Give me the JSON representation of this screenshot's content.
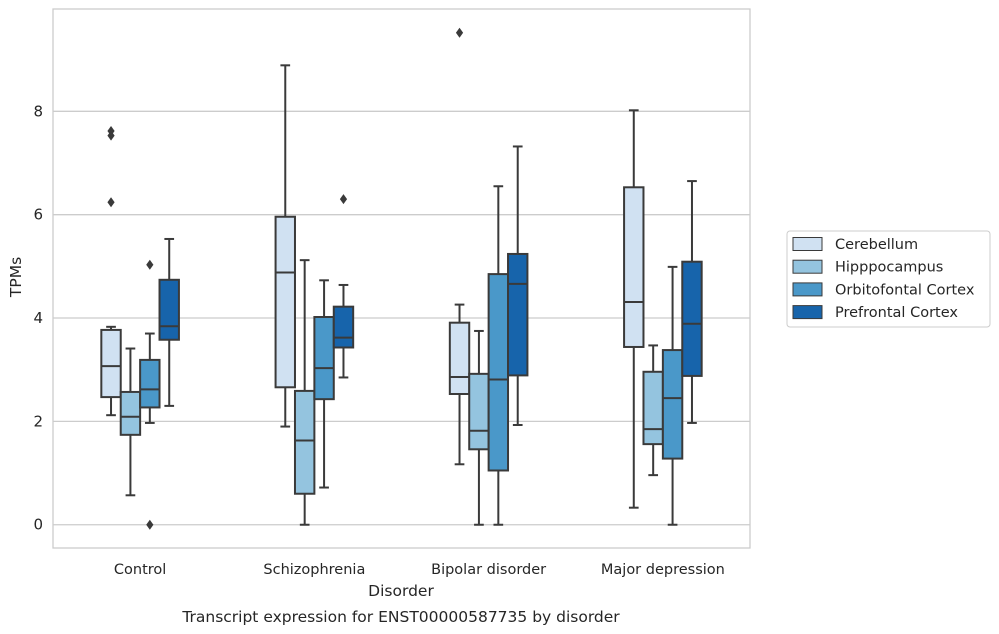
{
  "chart_data": {
    "type": "box",
    "title": "",
    "caption": "Transcript expression for ENST00000587735 by disorder",
    "xlabel": "Disorder",
    "ylabel": "TPMs",
    "ylim": [
      -0.45,
      9.98
    ],
    "yticks": [
      0,
      2,
      4,
      6,
      8
    ],
    "grid": "horizontal",
    "legend_position": "right",
    "categories": [
      "Control",
      "Schizophrenia",
      "Bipolar disorder",
      "Major depression"
    ],
    "series": [
      {
        "name": "Cerebellum",
        "color": "#d0e1f2",
        "boxes": [
          {
            "whisker_low": 2.12,
            "q1": 2.47,
            "median": 3.07,
            "q3": 3.77,
            "whisker_high": 3.83,
            "outliers": [
              7.62,
              7.53,
              6.24
            ]
          },
          {
            "whisker_low": 1.9,
            "q1": 2.66,
            "median": 4.88,
            "q3": 5.96,
            "whisker_high": 8.89,
            "outliers": []
          },
          {
            "whisker_low": 1.17,
            "q1": 2.53,
            "median": 2.86,
            "q3": 3.91,
            "whisker_high": 4.26,
            "outliers": [
              9.52
            ]
          },
          {
            "whisker_low": 0.33,
            "q1": 3.44,
            "median": 4.31,
            "q3": 6.53,
            "whisker_high": 8.02,
            "outliers": []
          }
        ]
      },
      {
        "name": "Hipppocampus",
        "color": "#94c4df",
        "boxes": [
          {
            "whisker_low": 0.57,
            "q1": 1.74,
            "median": 2.09,
            "q3": 2.57,
            "whisker_high": 3.41,
            "outliers": []
          },
          {
            "whisker_low": 0.0,
            "q1": 0.6,
            "median": 1.63,
            "q3": 2.59,
            "whisker_high": 5.12,
            "outliers": []
          },
          {
            "whisker_low": 0.0,
            "q1": 1.46,
            "median": 1.82,
            "q3": 2.92,
            "whisker_high": 3.75,
            "outliers": []
          },
          {
            "whisker_low": 0.96,
            "q1": 1.56,
            "median": 1.85,
            "q3": 2.96,
            "whisker_high": 3.47,
            "outliers": []
          }
        ]
      },
      {
        "name": "Orbitofontal Cortex",
        "color": "#4a98c9",
        "boxes": [
          {
            "whisker_low": 1.97,
            "q1": 2.27,
            "median": 2.62,
            "q3": 3.19,
            "whisker_high": 3.7,
            "outliers": [
              5.03,
              0.0
            ]
          },
          {
            "whisker_low": 0.72,
            "q1": 2.43,
            "median": 3.03,
            "q3": 4.02,
            "whisker_high": 4.73,
            "outliers": []
          },
          {
            "whisker_low": 0.0,
            "q1": 1.05,
            "median": 2.81,
            "q3": 4.85,
            "whisker_high": 6.55,
            "outliers": []
          },
          {
            "whisker_low": 0.0,
            "q1": 1.28,
            "median": 2.45,
            "q3": 3.38,
            "whisker_high": 4.99,
            "outliers": []
          }
        ]
      },
      {
        "name": "Prefrontal Cortex",
        "color": "#1764ab",
        "boxes": [
          {
            "whisker_low": 2.3,
            "q1": 3.58,
            "median": 3.84,
            "q3": 4.74,
            "whisker_high": 5.53,
            "outliers": []
          },
          {
            "whisker_low": 2.85,
            "q1": 3.43,
            "median": 3.62,
            "q3": 4.22,
            "whisker_high": 4.64,
            "outliers": [
              6.3
            ]
          },
          {
            "whisker_low": 1.93,
            "q1": 2.89,
            "median": 4.66,
            "q3": 5.24,
            "whisker_high": 7.32,
            "outliers": []
          },
          {
            "whisker_low": 1.97,
            "q1": 2.88,
            "median": 3.89,
            "q3": 5.09,
            "whisker_high": 6.65,
            "outliers": []
          }
        ]
      }
    ]
  }
}
